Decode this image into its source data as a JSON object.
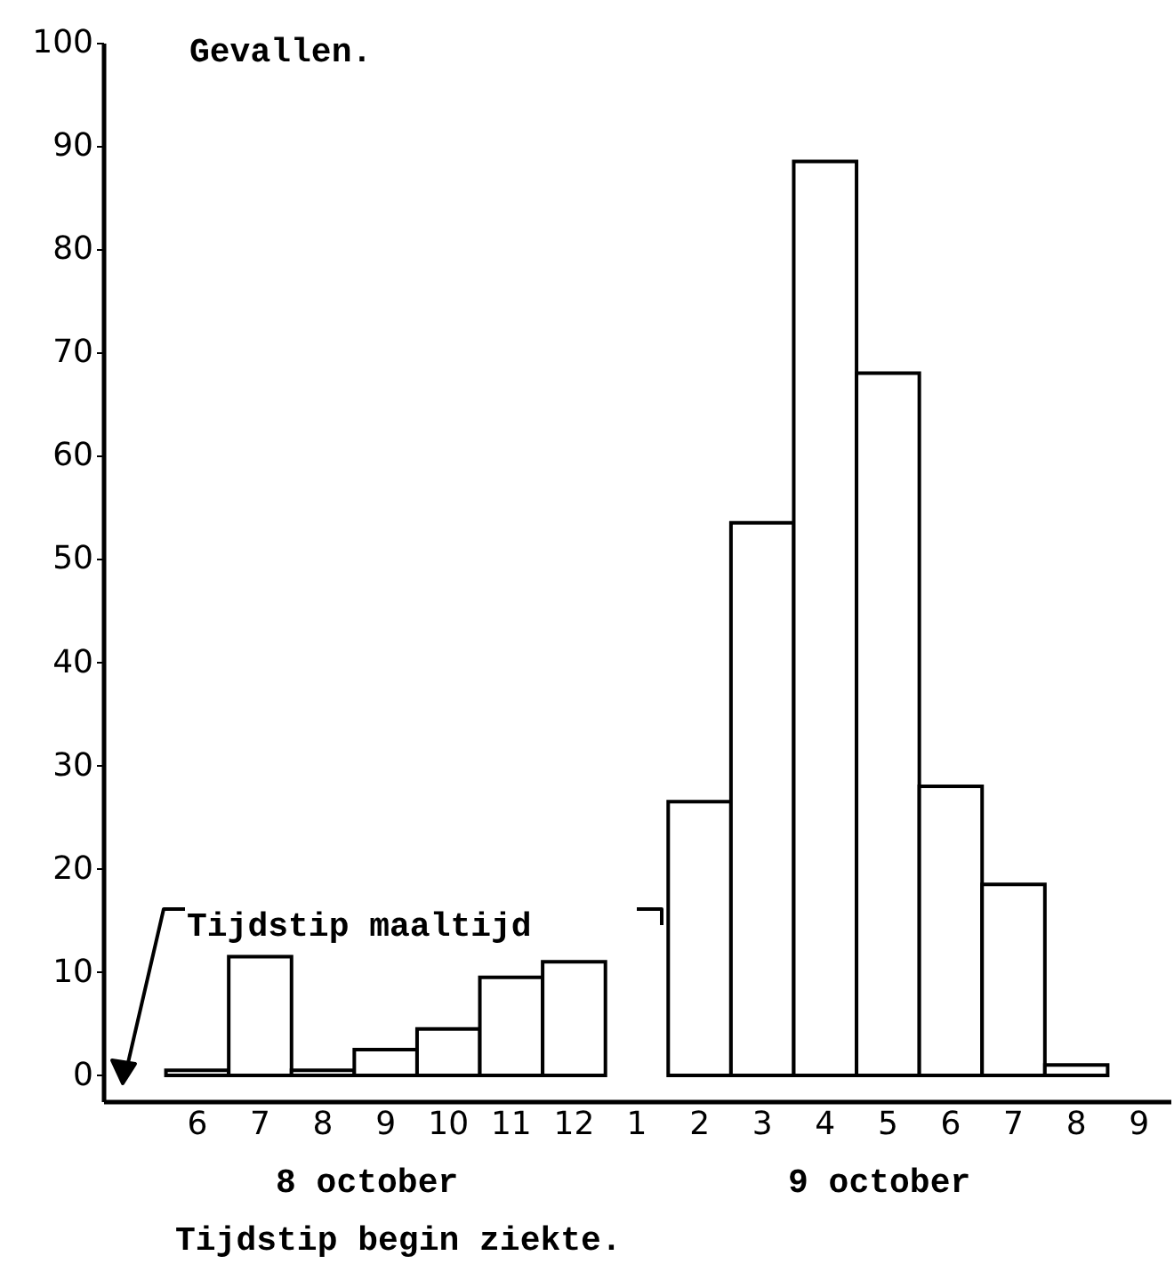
{
  "chart_data": {
    "type": "bar",
    "ylabel": "Gevallen.",
    "xlabel": "Tijdstip begin ziekte.",
    "categories": [
      "6",
      "7",
      "8",
      "9",
      "10",
      "11",
      "12",
      "1",
      "2",
      "3",
      "4",
      "5",
      "6",
      "7",
      "8",
      "9"
    ],
    "values": [
      0.5,
      11.5,
      0.5,
      2.5,
      4.5,
      9.5,
      11,
      null,
      26.5,
      53.5,
      88.5,
      68,
      28,
      18.5,
      1,
      null
    ],
    "color": "#ffffff",
    "ylim": [
      -2.5,
      100
    ],
    "yticks": [
      0,
      10,
      20,
      30,
      40,
      50,
      60,
      70,
      80,
      90,
      100
    ],
    "annotations": [
      "Tijdstip maaltijd",
      "8 october",
      "9 october"
    ]
  }
}
